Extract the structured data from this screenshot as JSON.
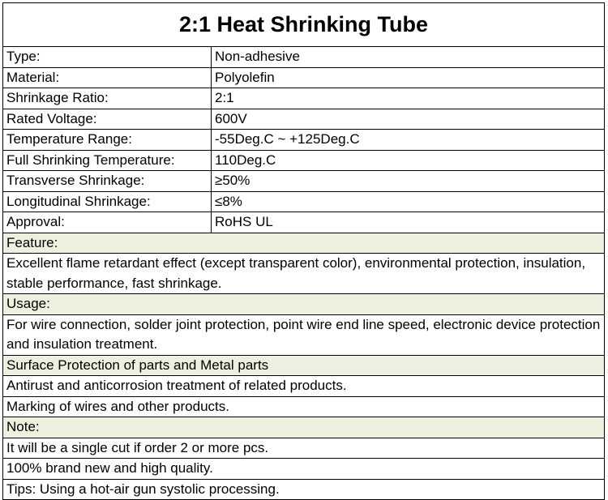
{
  "title": "2:1 Heat Shrinking Tube",
  "specs": [
    [
      "Type:",
      "Non-adhesive"
    ],
    [
      "Material:",
      "Polyolefin"
    ],
    [
      "Shrinkage Ratio:",
      "2:1"
    ],
    [
      "Rated Voltage:",
      "600V"
    ],
    [
      "Temperature Range:",
      "-55Deg.C ~ +125Deg.C"
    ],
    [
      "Full Shrinking Temperature:",
      "110Deg.C"
    ],
    [
      "Transverse Shrinkage:",
      "≥50%"
    ],
    [
      "Longitudinal Shrinkage:",
      "≤8%"
    ],
    [
      "Approval:",
      "RoHS UL"
    ]
  ],
  "sections": [
    {
      "heading": "Feature:",
      "items": [
        "Excellent flame retardant effect (except transparent color), environmental protection, insulation, stable performance, fast shrinkage."
      ]
    },
    {
      "heading": "Usage:",
      "items": [
        "For wire connection, solder joint protection, point wire end line speed, electronic device protection and insulation treatment."
      ]
    },
    {
      "heading": "Surface Protection of parts and Metal parts",
      "items": [
        "Antirust and anticorrosion treatment of related products.",
        "Marking of wires and other products."
      ]
    },
    {
      "heading": "Note:",
      "items": [
        "It will be a single cut if order 2 or more pcs.",
        "100% brand new and high quality."
      ]
    }
  ],
  "footer": "Tips: Using a hot-air gun systolic processing."
}
